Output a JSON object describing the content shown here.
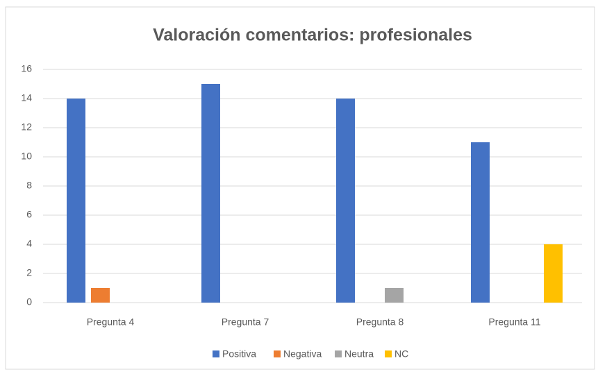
{
  "chart_data": {
    "type": "bar",
    "title": "Valoración comentarios: profesionales",
    "categories": [
      "Pregunta 4",
      "Pregunta 7",
      "Pregunta 8",
      "Pregunta 11"
    ],
    "series": [
      {
        "name": "Positiva",
        "color": "#4472c4",
        "values": [
          14,
          15,
          14,
          11
        ]
      },
      {
        "name": "Negativa",
        "color": "#ed7d31",
        "values": [
          1,
          0,
          0,
          0
        ]
      },
      {
        "name": "Neutra",
        "color": "#a5a5a5",
        "values": [
          0,
          0,
          1,
          0
        ]
      },
      {
        "name": "NC",
        "color": "#ffc000",
        "values": [
          0,
          0,
          0,
          4
        ]
      }
    ],
    "ylim": [
      0,
      16
    ],
    "yticks": [
      0,
      2,
      4,
      6,
      8,
      10,
      12,
      14,
      16
    ],
    "grid": true,
    "legend": "bottom"
  }
}
